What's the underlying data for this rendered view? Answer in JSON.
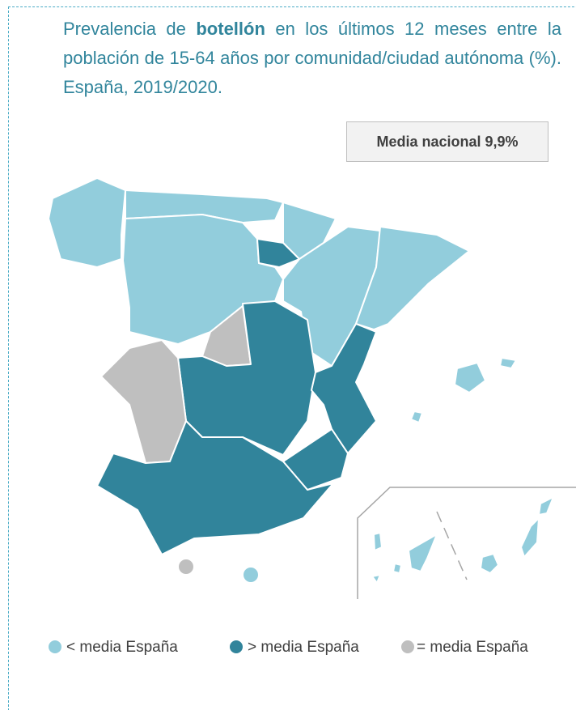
{
  "header": {
    "title_parts": [
      "Prevalencia de ",
      "botellón",
      " en los últimos 12 meses entre la población de 15-64 años por comunidad/ciudad autónoma (%). España, 2019/2020."
    ]
  },
  "national_mean": "Media nacional 9,9%",
  "legend": [
    {
      "label": "< media España",
      "color": "#92cddc"
    },
    {
      "label": "> media España",
      "color": "#31849b"
    },
    {
      "label": "= media España",
      "color": "#bfbfbf"
    }
  ]
}
